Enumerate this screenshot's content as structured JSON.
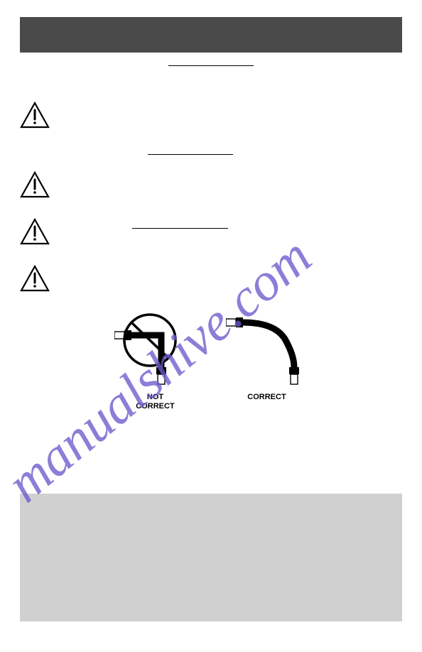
{
  "header": {
    "background_color": "#4a4a4a"
  },
  "cable_diagram": {
    "not_correct_label": "NOT\nCORRECT",
    "correct_label": "CORRECT",
    "cable_color": "#000000",
    "connector_outline": "#000000",
    "prohibition_circle_color": "#000000"
  },
  "gray_box": {
    "background_color": "#d0d0d0"
  },
  "watermark": {
    "text": "manualshive.com",
    "color": "#6a5acd",
    "opacity": 0.75,
    "font_size": 76,
    "rotation_deg": -40
  },
  "warning_icon": {
    "stroke": "#000000",
    "stroke_width": 2.2
  }
}
